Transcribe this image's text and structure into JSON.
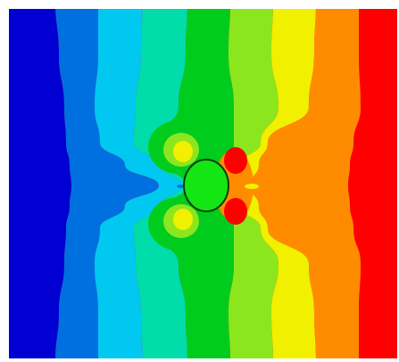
{
  "figure": {
    "kind": "filled-contour-field",
    "has_visible_text": false,
    "obstacle_shape": "circle",
    "contour_band_colors": [
      "#0000d2",
      "#0070e0",
      "#00c8f0",
      "#00dcaa",
      "#00cc1e",
      "#8ce61e",
      "#f0f000",
      "#ff8c00",
      "#ff0000"
    ],
    "obstacle_color": "#14e614",
    "obstacle_edge_color": "#0a3c0a",
    "frame_color": "#ffffff"
  }
}
